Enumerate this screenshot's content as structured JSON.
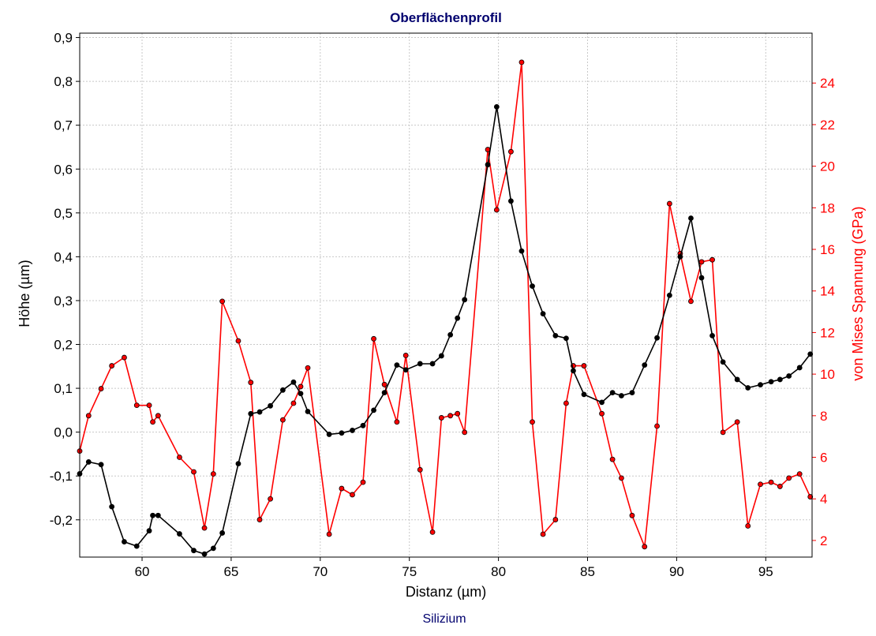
{
  "chart_data": {
    "type": "line",
    "title": "Oberflächenprofil",
    "subtitle": "Silizium",
    "xlabel": "Distanz (µm)",
    "ylabel_left": "Höhe (µm)",
    "ylabel_right": "von Mises Spannung (GPa)",
    "xlim": [
      56.5,
      97.6
    ],
    "ylim_left": [
      -0.285,
      0.91
    ],
    "ylim_right": [
      1.2,
      26.4
    ],
    "x_ticks": [
      60,
      65,
      70,
      75,
      80,
      85,
      90,
      95
    ],
    "y_left_ticks": [
      {
        "value": -0.2,
        "label": "-0,2"
      },
      {
        "value": -0.1,
        "label": "-0,1"
      },
      {
        "value": 0.0,
        "label": "0,0"
      },
      {
        "value": 0.1,
        "label": "0,1"
      },
      {
        "value": 0.2,
        "label": "0,2"
      },
      {
        "value": 0.3,
        "label": "0,3"
      },
      {
        "value": 0.4,
        "label": "0,4"
      },
      {
        "value": 0.5,
        "label": "0,5"
      },
      {
        "value": 0.6,
        "label": "0,6"
      },
      {
        "value": 0.7,
        "label": "0,7"
      },
      {
        "value": 0.8,
        "label": "0,8"
      },
      {
        "value": 0.9,
        "label": "0,9"
      }
    ],
    "y_right_ticks": [
      2,
      4,
      6,
      8,
      10,
      12,
      14,
      16,
      18,
      20,
      22,
      24
    ],
    "grid": true,
    "series": [
      {
        "axis": "left",
        "color": "#000000",
        "x": [
          56.5,
          57.0,
          57.7,
          58.3,
          59.0,
          59.7,
          60.4,
          60.6,
          60.9,
          62.1,
          62.9,
          63.5,
          64.0,
          64.5,
          65.4,
          66.1,
          66.6,
          67.2,
          67.9,
          68.5,
          68.9,
          69.3,
          70.5,
          71.2,
          71.8,
          72.4,
          73.0,
          73.6,
          74.3,
          74.8,
          75.6,
          76.3,
          76.8,
          77.3,
          77.7,
          78.1,
          79.4,
          79.9,
          80.7,
          81.3,
          81.9,
          82.5,
          83.2,
          83.8,
          84.2,
          84.8,
          85.8,
          86.4,
          86.9,
          87.5,
          88.2,
          88.9,
          89.6,
          90.2,
          90.8,
          91.4,
          92.0,
          92.6,
          93.4,
          94.0,
          94.7,
          95.3,
          95.8,
          96.3,
          96.9,
          97.5
        ],
        "y": [
          -0.095,
          -0.068,
          -0.074,
          -0.17,
          -0.25,
          -0.26,
          -0.225,
          -0.19,
          -0.19,
          -0.232,
          -0.27,
          -0.278,
          -0.265,
          -0.23,
          -0.072,
          0.042,
          0.046,
          0.06,
          0.096,
          0.114,
          0.088,
          0.047,
          -0.005,
          -0.002,
          0.004,
          0.015,
          0.05,
          0.09,
          0.153,
          0.142,
          0.156,
          0.156,
          0.174,
          0.222,
          0.26,
          0.302,
          0.61,
          0.742,
          0.527,
          0.413,
          0.333,
          0.27,
          0.22,
          0.214,
          0.14,
          0.086,
          0.068,
          0.09,
          0.083,
          0.09,
          0.153,
          0.215,
          0.312,
          0.4,
          0.488,
          0.352,
          0.22,
          0.16,
          0.12,
          0.101,
          0.108,
          0.115,
          0.12,
          0.128,
          0.147,
          0.178
        ]
      },
      {
        "axis": "right",
        "color": "#ff0000",
        "x": [
          56.5,
          57.0,
          57.7,
          58.3,
          59.0,
          59.7,
          60.4,
          60.6,
          60.9,
          62.1,
          62.9,
          63.5,
          64.0,
          64.5,
          65.4,
          66.1,
          66.6,
          67.2,
          67.9,
          68.5,
          68.9,
          69.3,
          70.5,
          71.2,
          71.8,
          72.4,
          73.0,
          73.6,
          74.3,
          74.8,
          75.6,
          76.3,
          76.8,
          77.3,
          77.7,
          78.1,
          79.4,
          79.9,
          80.7,
          81.3,
          81.9,
          82.5,
          83.2,
          83.8,
          84.2,
          84.8,
          85.8,
          86.4,
          86.9,
          87.5,
          88.2,
          88.9,
          89.6,
          90.2,
          90.8,
          91.4,
          92.0,
          92.6,
          93.4,
          94.0,
          94.7,
          95.3,
          95.8,
          96.3,
          96.9,
          97.5
        ],
        "y": [
          6.3,
          8.0,
          9.3,
          10.4,
          10.8,
          8.5,
          8.5,
          7.7,
          8.0,
          6.0,
          5.3,
          2.6,
          5.2,
          13.5,
          11.6,
          9.6,
          3.0,
          4.0,
          7.8,
          8.6,
          9.4,
          10.3,
          2.3,
          4.5,
          4.2,
          4.8,
          11.7,
          9.5,
          7.7,
          10.9,
          5.4,
          2.4,
          7.9,
          8.0,
          8.1,
          7.2,
          20.8,
          17.9,
          20.7,
          25.0,
          7.7,
          2.3,
          3.0,
          8.6,
          10.4,
          10.4,
          8.1,
          5.9,
          5.0,
          3.2,
          1.7,
          7.5,
          18.2,
          15.8,
          13.5,
          15.4,
          15.5,
          7.2,
          7.7,
          2.7,
          4.7,
          4.8,
          4.6,
          5.0,
          5.2,
          4.1
        ]
      }
    ]
  }
}
